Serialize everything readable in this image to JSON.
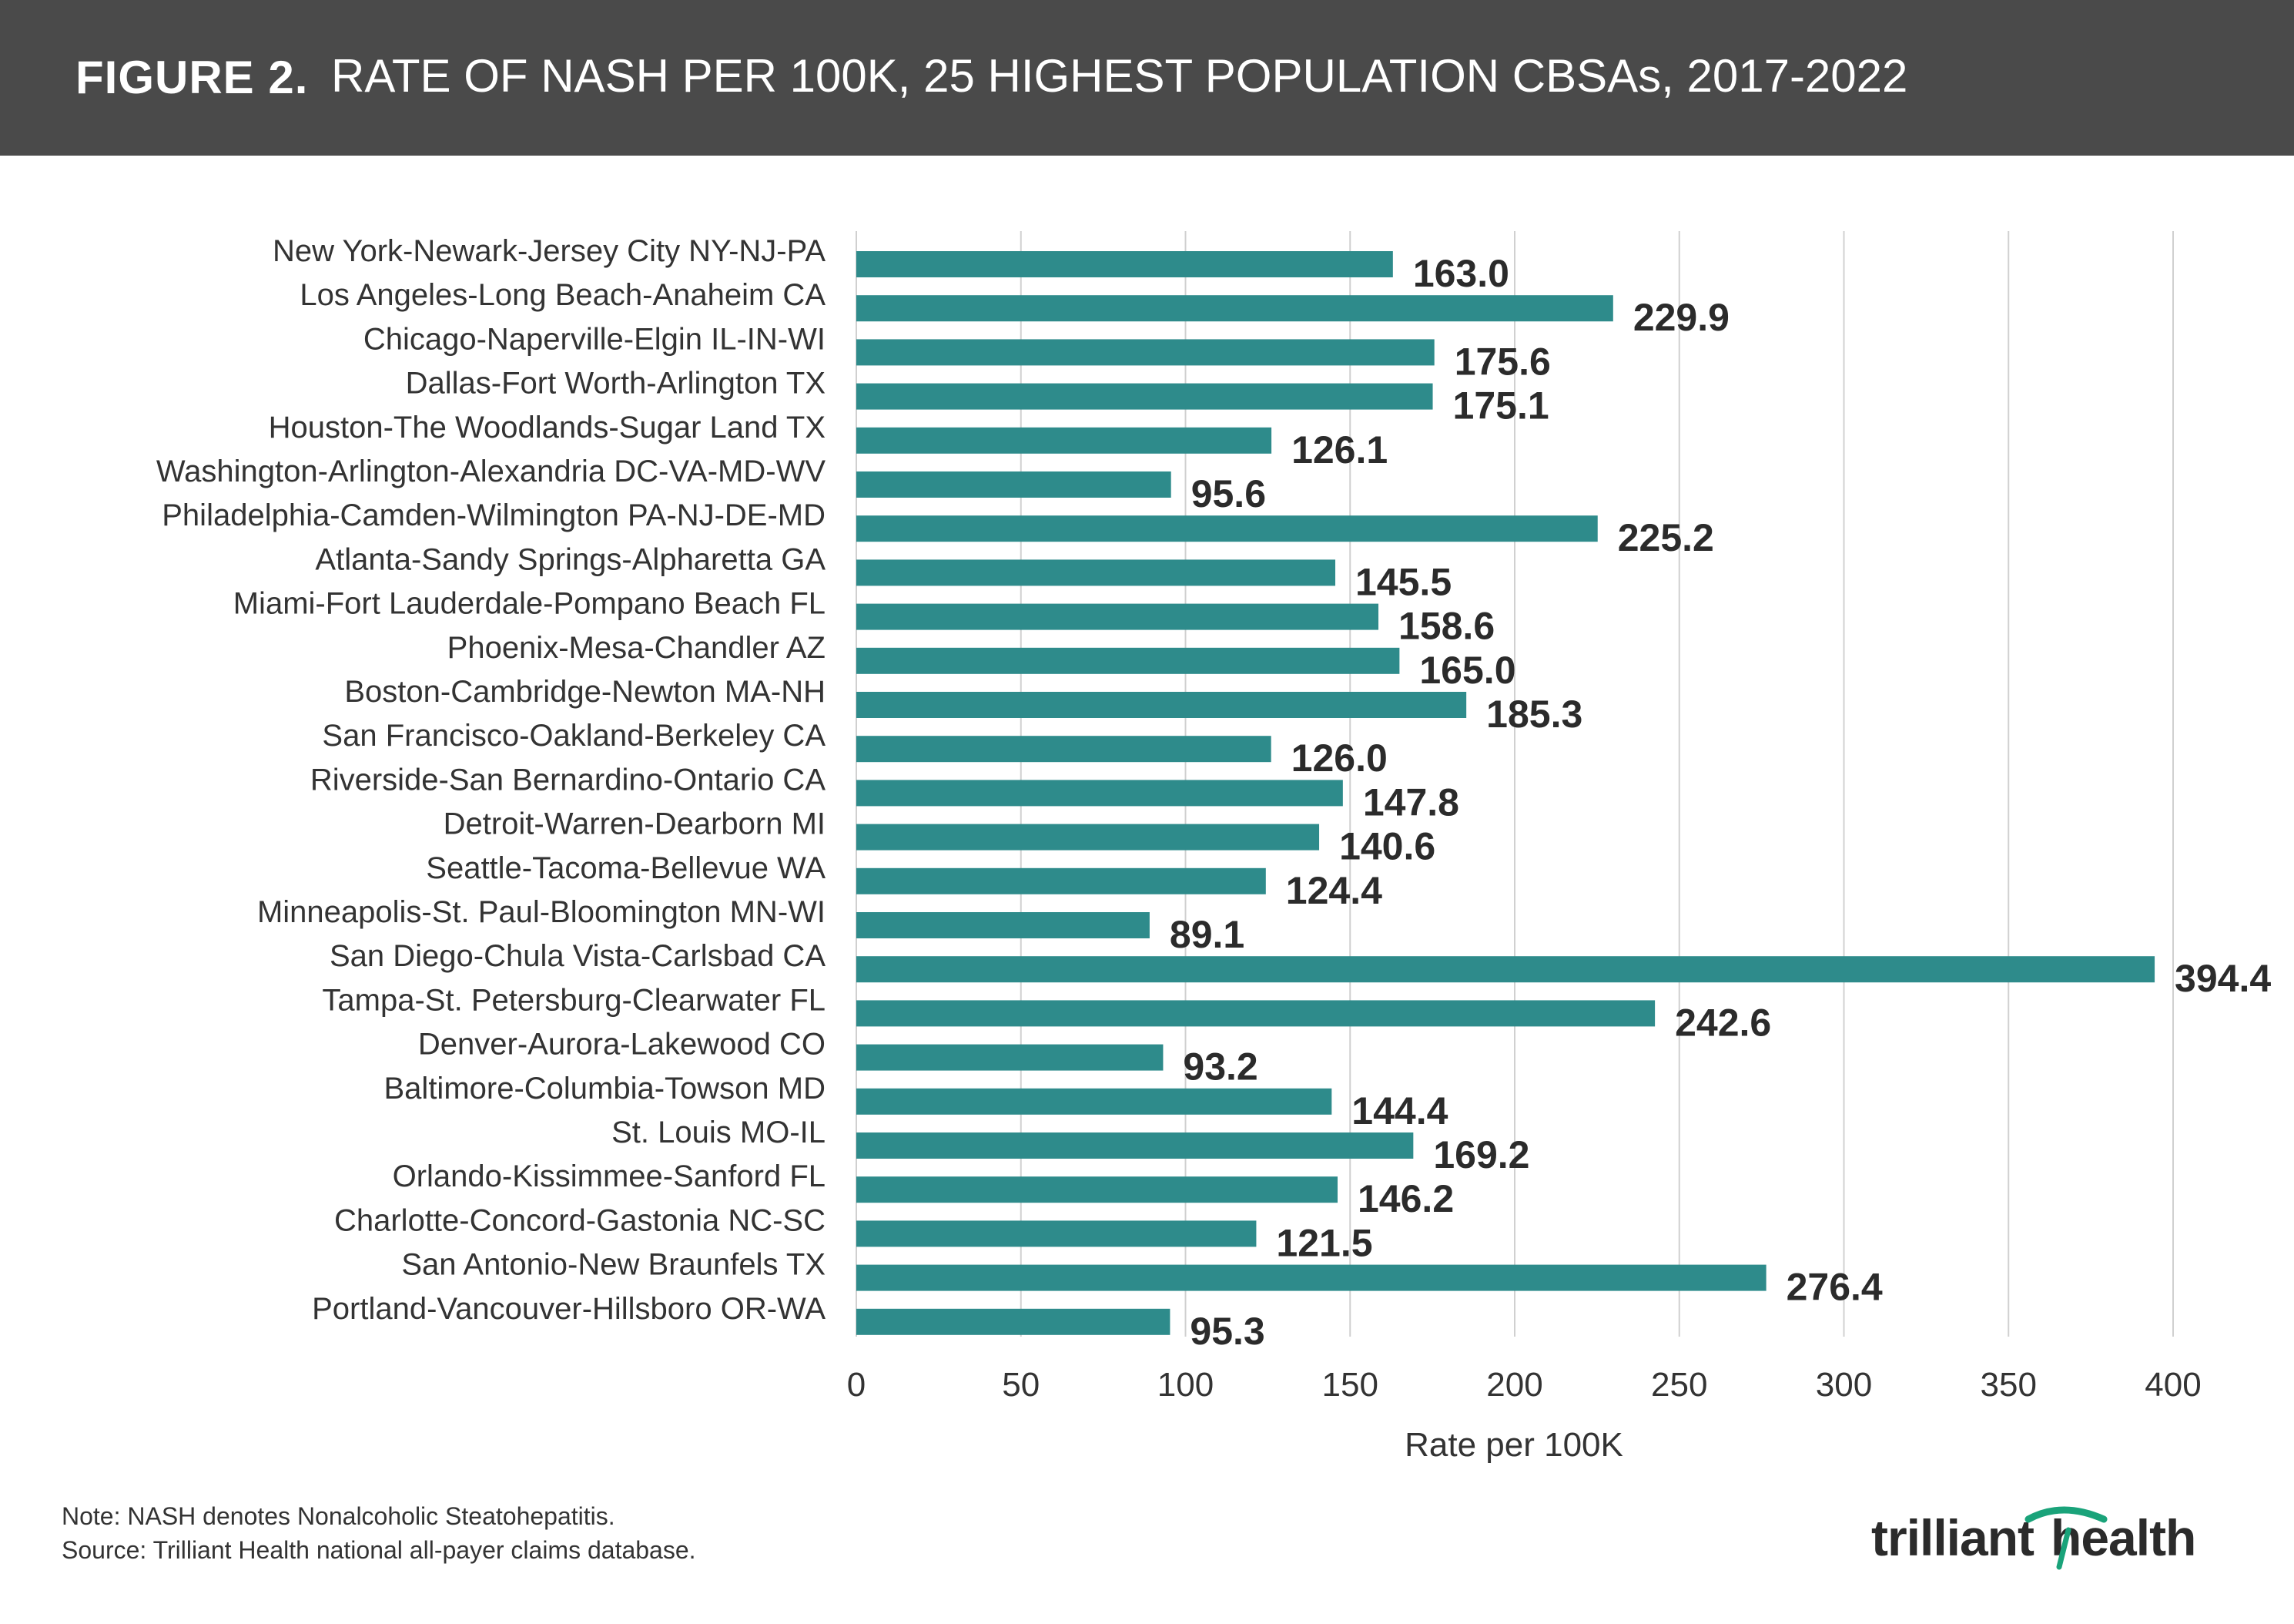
{
  "header": {
    "figure_label": "FIGURE 2.",
    "title": "RATE OF NASH PER 100K, 25 HIGHEST POPULATION CBSAs, 2017-2022"
  },
  "colors": {
    "header_bg": "#4a4a4a",
    "bar": "#2e8b8b",
    "grid": "#d0d0d0",
    "label": "#333333",
    "value_label": "#2b2b2b",
    "logo_accent": "#1aa37a"
  },
  "chart_data": {
    "type": "bar",
    "orientation": "horizontal",
    "title": "RATE OF NASH PER 100K, 25 HIGHEST POPULATION CBSAs, 2017-2022",
    "xlabel": "Rate per 100K",
    "ylabel": "",
    "xlim": [
      0,
      420
    ],
    "xticks": [
      0,
      50,
      100,
      150,
      200,
      250,
      300,
      350,
      400
    ],
    "grid": true,
    "categories": [
      "New York-Newark-Jersey City NY-NJ-PA",
      "Los Angeles-Long Beach-Anaheim CA",
      "Chicago-Naperville-Elgin IL-IN-WI",
      "Dallas-Fort Worth-Arlington TX",
      "Houston-The Woodlands-Sugar Land TX",
      "Washington-Arlington-Alexandria DC-VA-MD-WV",
      "Philadelphia-Camden-Wilmington PA-NJ-DE-MD",
      "Atlanta-Sandy Springs-Alpharetta GA",
      "Miami-Fort Lauderdale-Pompano Beach FL",
      "Phoenix-Mesa-Chandler AZ",
      "Boston-Cambridge-Newton MA-NH",
      "San Francisco-Oakland-Berkeley CA",
      "Riverside-San Bernardino-Ontario CA",
      "Detroit-Warren-Dearborn MI",
      "Seattle-Tacoma-Bellevue WA",
      "Minneapolis-St. Paul-Bloomington MN-WI",
      "San Diego-Chula Vista-Carlsbad CA",
      "Tampa-St. Petersburg-Clearwater FL",
      "Denver-Aurora-Lakewood CO",
      "Baltimore-Columbia-Towson MD",
      "St. Louis MO-IL",
      "Orlando-Kissimmee-Sanford FL",
      "Charlotte-Concord-Gastonia NC-SC",
      "San Antonio-New Braunfels TX",
      "Portland-Vancouver-Hillsboro OR-WA"
    ],
    "values": [
      163.0,
      229.9,
      175.6,
      175.1,
      126.1,
      95.6,
      225.2,
      145.5,
      158.6,
      165.0,
      185.3,
      126.0,
      147.8,
      140.6,
      124.4,
      89.1,
      394.4,
      242.6,
      93.2,
      144.4,
      169.2,
      146.2,
      121.5,
      276.4,
      95.3
    ],
    "value_labels": [
      "163.0",
      "229.9",
      "175.6",
      "175.1",
      "126.1",
      "95.6",
      "225.2",
      "145.5",
      "158.6",
      "165.0",
      "185.3",
      "126.0",
      "147.8",
      "140.6",
      "124.4",
      "89.1",
      "394.4",
      "242.6",
      "93.2",
      "144.4",
      "169.2",
      "146.2",
      "121.5",
      "276.4",
      "95.3"
    ]
  },
  "footer": {
    "note": "Note: NASH denotes Nonalcoholic Steatohepatitis.",
    "source": "Source: Trilliant Health national all-payer claims database.",
    "logo_text_left": "trilliant",
    "logo_text_right": "health"
  }
}
